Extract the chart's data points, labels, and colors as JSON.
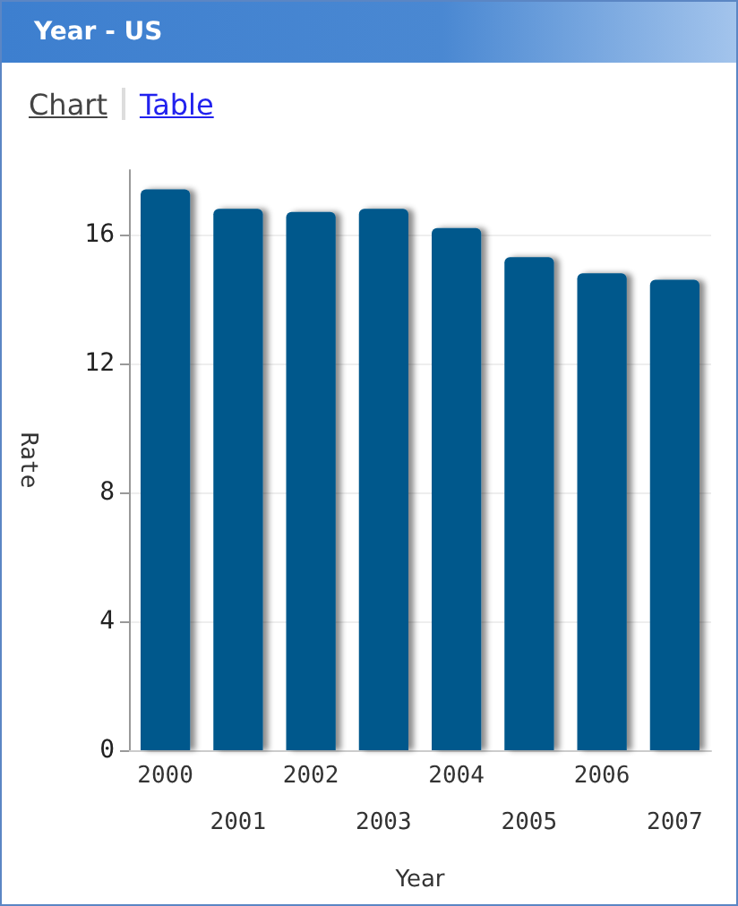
{
  "chart_data": {
    "type": "bar",
    "title": "Year - US",
    "xlabel": "Year",
    "ylabel": "Rate",
    "annotations": [
      "Chart",
      "Table"
    ],
    "categories": [
      "2000",
      "2001",
      "2002",
      "2003",
      "2004",
      "2005",
      "2006",
      "2007"
    ],
    "values": [
      17.4,
      16.8,
      16.7,
      16.8,
      16.2,
      15.3,
      14.8,
      14.6
    ],
    "color": "#06598c",
    "ylim": [
      0,
      18
    ],
    "yticks": [
      0,
      4,
      8,
      12,
      16
    ],
    "grid": "y"
  }
}
